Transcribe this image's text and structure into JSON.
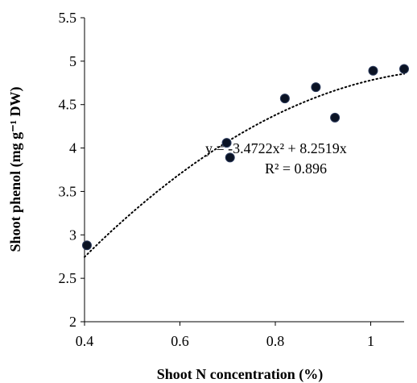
{
  "chart_data": {
    "type": "scatter",
    "xlabel": "Shoot N concentration  (%)",
    "ylabel": "Shoot phenol (mg g⁻¹ DW)",
    "xlim": [
      0.4,
      1.07
    ],
    "ylim": [
      2,
      5.5
    ],
    "x_ticks": [
      "0.4",
      "0.6",
      "0.8",
      "1"
    ],
    "y_ticks": [
      "2",
      "2.5",
      "3",
      "3.5",
      "4",
      "4.5",
      "5",
      "5.5"
    ],
    "grid": false,
    "points": [
      {
        "x": 0.405,
        "y": 2.88
      },
      {
        "x": 0.698,
        "y": 4.06
      },
      {
        "x": 0.705,
        "y": 3.89
      },
      {
        "x": 0.82,
        "y": 4.57
      },
      {
        "x": 0.885,
        "y": 4.7
      },
      {
        "x": 0.925,
        "y": 4.35
      },
      {
        "x": 1.005,
        "y": 4.89
      },
      {
        "x": 1.07,
        "y": 4.91
      }
    ],
    "trendline": {
      "type": "polynomial",
      "order": 2,
      "a": -3.4722,
      "b": 8.2519,
      "c": 0,
      "style": "dotted"
    },
    "annotations": {
      "equation": "y = -3.4722x² + 8.2519x",
      "r_squared": "R² = 0.896"
    }
  }
}
